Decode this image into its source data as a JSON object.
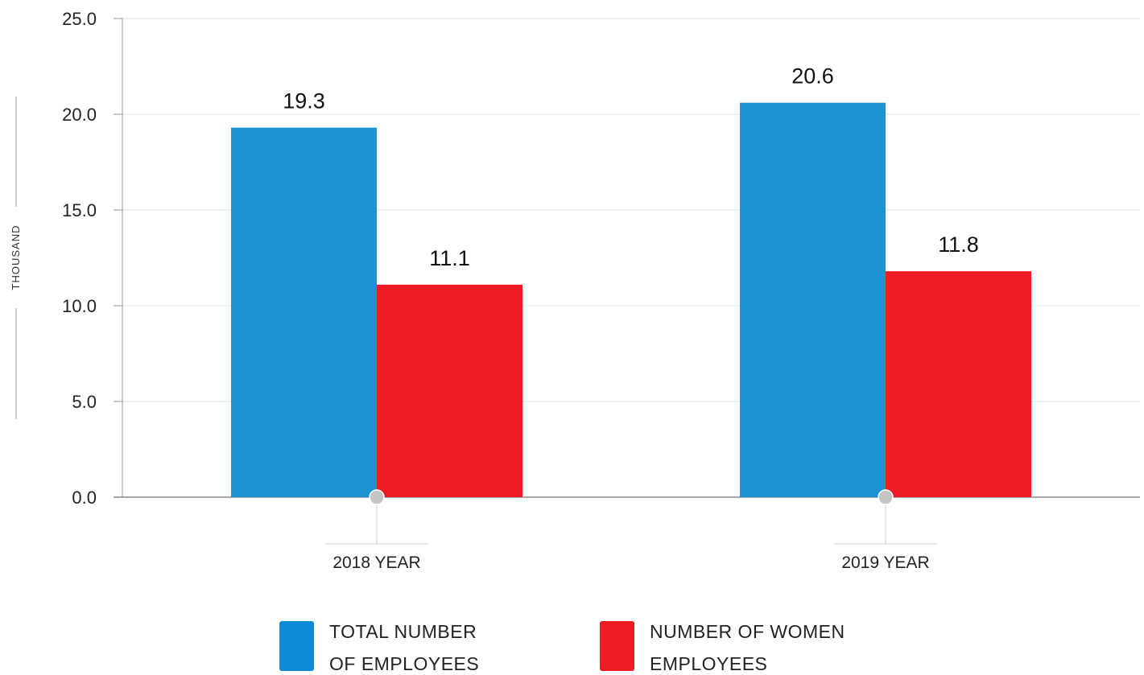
{
  "chart_data": {
    "type": "bar",
    "title": "",
    "xlabel": "",
    "ylabel": "THOUSAND",
    "categories": [
      "2018 YEAR",
      "2019 YEAR"
    ],
    "series": [
      {
        "name": "TOTAL NUMBER OF EMPLOYEES",
        "values": [
          19.3,
          20.6
        ],
        "color": "#1E93D2"
      },
      {
        "name": "NUMBER OF WOMEN EMPLOYEES",
        "values": [
          11.1,
          11.8
        ],
        "color": "#ED1C24"
      }
    ],
    "ylim": [
      0,
      25
    ],
    "yticks": [
      "0.0",
      "5.0",
      "10.0",
      "15.0",
      "20.0",
      "25.0"
    ],
    "grid": true,
    "legend_position": "bottom",
    "legend": [
      {
        "lines": [
          "TOTAL NUMBER",
          "OF EMPLOYEES"
        ],
        "color": "#0D8BD6"
      },
      {
        "lines": [
          "NUMBER OF WOMEN",
          "EMPLOYEES"
        ],
        "color": "#ED1C24"
      }
    ]
  }
}
